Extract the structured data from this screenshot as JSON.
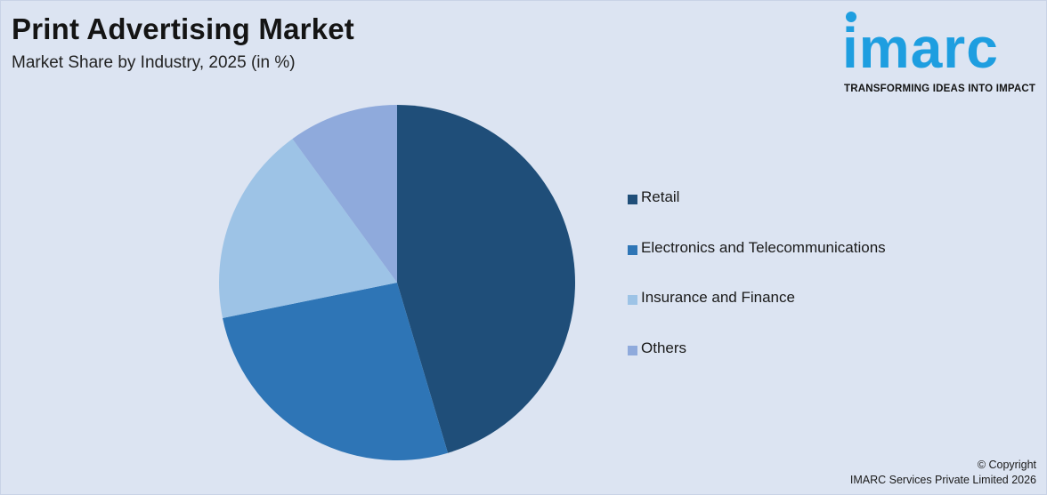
{
  "header": {
    "title": "Print Advertising Market",
    "subtitle": "Market Share by Industry, 2025 (in %)"
  },
  "logo": {
    "wordmark": "imarc",
    "tagline": "TRANSFORMING IDEAS INTO IMPACT",
    "color": "#1e9ee0"
  },
  "chart_data": {
    "type": "pie",
    "title": "Print Advertising Market",
    "subtitle": "Market Share by Industry, 2025 (in %)",
    "legend_position": "right",
    "start_angle_deg": 0,
    "direction": "clockwise",
    "slices": [
      {
        "label": "Retail",
        "value": 45.4,
        "color": "#1f4e79"
      },
      {
        "label": "Electronics and Telecommunications",
        "value": 26.4,
        "color": "#2e75b6"
      },
      {
        "label": "Insurance and Finance",
        "value": 18.2,
        "color": "#9dc3e6"
      },
      {
        "label": "Others",
        "value": 10.0,
        "color": "#8faadc"
      }
    ]
  },
  "footer": {
    "copyright_line1": "© Copyright",
    "copyright_line2": "IMARC Services Private Limited 2026"
  }
}
